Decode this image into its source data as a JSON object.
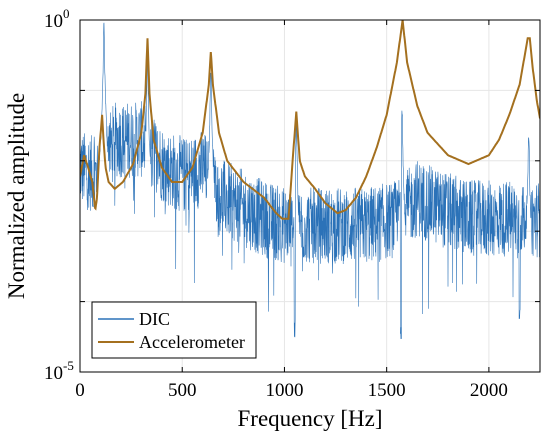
{
  "chart_data": {
    "type": "line",
    "xlabel": "Frequency [Hz]",
    "ylabel": "Normalized amplitude",
    "xlim": [
      0,
      2250
    ],
    "ylim": [
      1e-05,
      1
    ],
    "yscale": "log",
    "grid": true,
    "legend_position": "bottom-left",
    "x_ticks": [
      0,
      500,
      1000,
      1500,
      2000
    ],
    "x_tick_labels": [
      "0",
      "500",
      "1000",
      "1500",
      "2000"
    ],
    "y_ticks": [
      1e-05,
      0.0001,
      0.001,
      0.01,
      0.1,
      1
    ],
    "y_tick_labels": [
      {
        "base": "10",
        "exp": "-5"
      },
      {
        "base": "",
        "exp": ""
      },
      {
        "base": "",
        "exp": ""
      },
      {
        "base": "",
        "exp": ""
      },
      {
        "base": "",
        "exp": ""
      },
      {
        "base": "10",
        "exp": "0"
      }
    ],
    "series": [
      {
        "name": "DIC",
        "color": "#2b72b8",
        "style": "noisy spectrum",
        "base_level": [
          [
            0,
            0.008
          ],
          [
            80,
            0.006
          ],
          [
            100,
            0.012
          ],
          [
            180,
            0.02
          ],
          [
            300,
            0.02
          ],
          [
            420,
            0.008
          ],
          [
            520,
            0.006
          ],
          [
            600,
            0.008
          ],
          [
            700,
            0.003
          ],
          [
            900,
            0.0015
          ],
          [
            1000,
            0.0012
          ],
          [
            1050,
            0.0012
          ],
          [
            1200,
            0.0012
          ],
          [
            1400,
            0.0012
          ],
          [
            1550,
            0.0015
          ],
          [
            1650,
            0.003
          ],
          [
            1700,
            0.0025
          ],
          [
            1900,
            0.0015
          ],
          [
            2100,
            0.0015
          ],
          [
            2250,
            0.0015
          ]
        ],
        "noise_spread_decades": 0.55,
        "peaks": [
          [
            117,
            1.0
          ],
          [
            330,
            0.35
          ],
          [
            640,
            0.25
          ],
          [
            1058,
            0.045
          ],
          [
            1575,
            0.07
          ],
          [
            2195,
            0.03
          ]
        ],
        "dips": [
          [
            985,
            0.0006
          ],
          [
            1050,
            4e-05
          ],
          [
            1570,
            4e-05
          ],
          [
            2150,
            8e-05
          ]
        ]
      },
      {
        "name": "Accelerometer",
        "color": "#a4701f",
        "style": "resonance curve",
        "points": [
          [
            0,
            0.006
          ],
          [
            20,
            0.012
          ],
          [
            40,
            0.008
          ],
          [
            60,
            0.005
          ],
          [
            75,
            0.002
          ],
          [
            83,
            0.003
          ],
          [
            95,
            0.015
          ],
          [
            108,
            0.045
          ],
          [
            115,
            0.02
          ],
          [
            125,
            0.008
          ],
          [
            140,
            0.005
          ],
          [
            170,
            0.004
          ],
          [
            210,
            0.005
          ],
          [
            260,
            0.009
          ],
          [
            300,
            0.025
          ],
          [
            320,
            0.09
          ],
          [
            330,
            0.55
          ],
          [
            340,
            0.09
          ],
          [
            360,
            0.02
          ],
          [
            400,
            0.008
          ],
          [
            450,
            0.005
          ],
          [
            500,
            0.005
          ],
          [
            550,
            0.008
          ],
          [
            600,
            0.025
          ],
          [
            630,
            0.12
          ],
          [
            640,
            0.35
          ],
          [
            650,
            0.12
          ],
          [
            680,
            0.025
          ],
          [
            720,
            0.01
          ],
          [
            800,
            0.005
          ],
          [
            900,
            0.003
          ],
          [
            960,
            0.0018
          ],
          [
            990,
            0.0015
          ],
          [
            1005,
            0.0015
          ],
          [
            1020,
            0.0015
          ],
          [
            1040,
            0.01
          ],
          [
            1058,
            0.05
          ],
          [
            1075,
            0.01
          ],
          [
            1100,
            0.006
          ],
          [
            1150,
            0.004
          ],
          [
            1200,
            0.0025
          ],
          [
            1260,
            0.0018
          ],
          [
            1300,
            0.002
          ],
          [
            1350,
            0.003
          ],
          [
            1400,
            0.006
          ],
          [
            1450,
            0.015
          ],
          [
            1500,
            0.045
          ],
          [
            1550,
            0.25
          ],
          [
            1578,
            1.0
          ],
          [
            1600,
            0.25
          ],
          [
            1650,
            0.06
          ],
          [
            1700,
            0.025
          ],
          [
            1800,
            0.012
          ],
          [
            1900,
            0.009
          ],
          [
            2000,
            0.012
          ],
          [
            2050,
            0.02
          ],
          [
            2100,
            0.045
          ],
          [
            2150,
            0.12
          ],
          [
            2190,
            0.55
          ],
          [
            2200,
            0.55
          ],
          [
            2215,
            0.2
          ],
          [
            2235,
            0.07
          ],
          [
            2250,
            0.04
          ]
        ]
      }
    ]
  }
}
